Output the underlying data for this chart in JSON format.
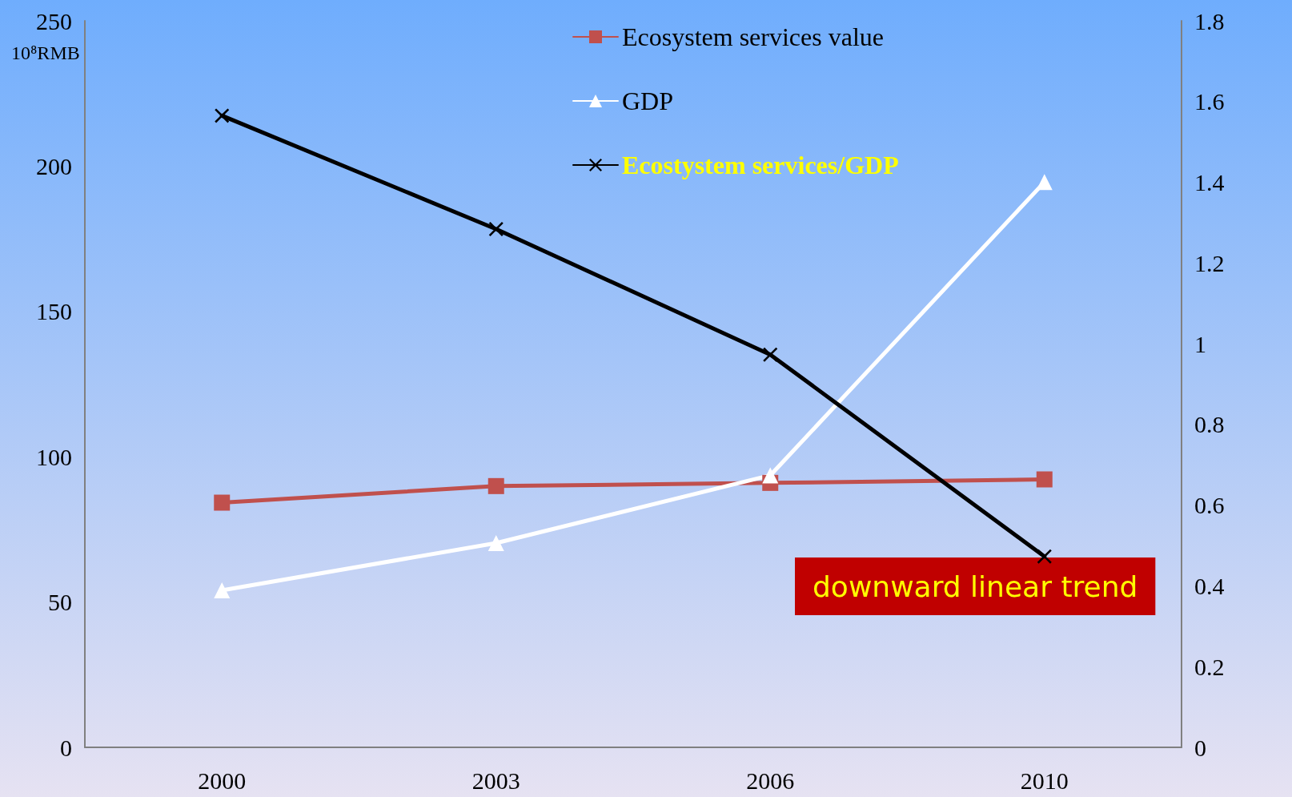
{
  "chart_data": {
    "type": "line",
    "ylabel": "10⁸RMB",
    "categories": [
      "2000",
      "2003",
      "2006",
      "2010"
    ],
    "series": [
      {
        "name": "Ecosystem services value",
        "color": "#c0504d",
        "marker": "square",
        "values": [
          84.2,
          89.9,
          91.0,
          92.2
        ]
      },
      {
        "name": "GDP",
        "color": "#ffffff",
        "marker": "triangle",
        "values": [
          54.0,
          70.3,
          93.6,
          194.5
        ]
      },
      {
        "name": "Ecostystem services/GDP",
        "color": "#000000",
        "marker": "cross",
        "axis": "y2",
        "values": [
          1.565,
          1.284,
          0.973,
          0.473
        ]
      }
    ],
    "ylim": [
      0,
      250
    ],
    "yticks": [
      0,
      50,
      100,
      150,
      200,
      250
    ],
    "y2lim": [
      0,
      1.8
    ],
    "y2ticks": [
      0,
      0.2,
      0.4,
      0.6,
      0.8,
      1,
      1.2,
      1.4,
      1.6,
      1.8
    ],
    "grid": false,
    "legend": "top",
    "line_style": "solid",
    "annotations": [
      "downward linear trend"
    ]
  }
}
